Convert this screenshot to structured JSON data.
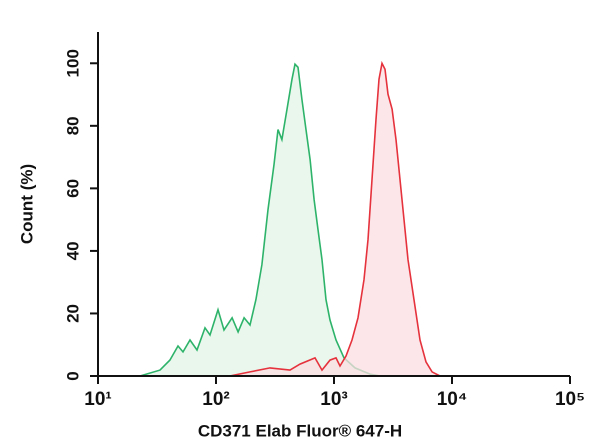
{
  "chart_data": {
    "type": "line",
    "xlabel": "CD371 Elab Fluor® 647-H",
    "ylabel": "Count (%)",
    "xscale": "log",
    "xlim": [
      10,
      100000
    ],
    "ylim": [
      0,
      110
    ],
    "xticks": [
      {
        "value": 10,
        "label": "10¹"
      },
      {
        "value": 100,
        "label": "10²"
      },
      {
        "value": 1000,
        "label": "10³"
      },
      {
        "value": 10000,
        "label": "10⁴"
      },
      {
        "value": 100000,
        "label": "10⁵"
      }
    ],
    "yticks": [
      0,
      20,
      40,
      60,
      80,
      100
    ],
    "grid": false,
    "series": [
      {
        "color": "#2eb36a",
        "fill": "#e2f4e6",
        "x": [
          22.7,
          33.5,
          40.7,
          47.6,
          52.5,
          60.2,
          69.0,
          80.7,
          88.9,
          104,
          117,
          137,
          154,
          173,
          194,
          218,
          245,
          276,
          310,
          335,
          362,
          400,
          441,
          467,
          495,
          535,
          579,
          627,
          678,
          732,
          791,
          855,
          925,
          1040,
          1216,
          1507,
          2018,
          2455
        ],
        "values": [
          0,
          1.9,
          5.1,
          9.6,
          7.7,
          11.5,
          8.3,
          15.4,
          13.1,
          21.2,
          14.7,
          18.6,
          14.1,
          18.6,
          16.3,
          24.4,
          35.6,
          53.2,
          67.6,
          78.8,
          75.6,
          85.3,
          94.9,
          99.7,
          98.7,
          88.5,
          78.8,
          69.2,
          56.4,
          46.8,
          37.2,
          24.4,
          17.9,
          11.5,
          5.8,
          2.6,
          0.6,
          0
        ]
      },
      {
        "color": "#e5323c",
        "fill": "#fbdde1",
        "x": [
          131,
          194,
          287,
          424,
          515,
          690,
          791,
          925,
          1040,
          1124,
          1265,
          1422,
          1597,
          1795,
          1941,
          2099,
          2270,
          2406,
          2553,
          2704,
          2871,
          3105,
          3350,
          3622,
          3917,
          4236,
          4764,
          5358,
          6026,
          6776,
          7907
        ],
        "values": [
          0,
          1.3,
          2.6,
          1.9,
          3.8,
          5.8,
          1.9,
          5.1,
          5.8,
          3.2,
          6.4,
          11.5,
          18.6,
          30.8,
          43.6,
          62.8,
          82.1,
          94.9,
          100,
          98.1,
          90.1,
          85.3,
          75.6,
          62.8,
          50,
          37.2,
          24.4,
          11.5,
          4.5,
          1.3,
          0
        ]
      }
    ]
  }
}
